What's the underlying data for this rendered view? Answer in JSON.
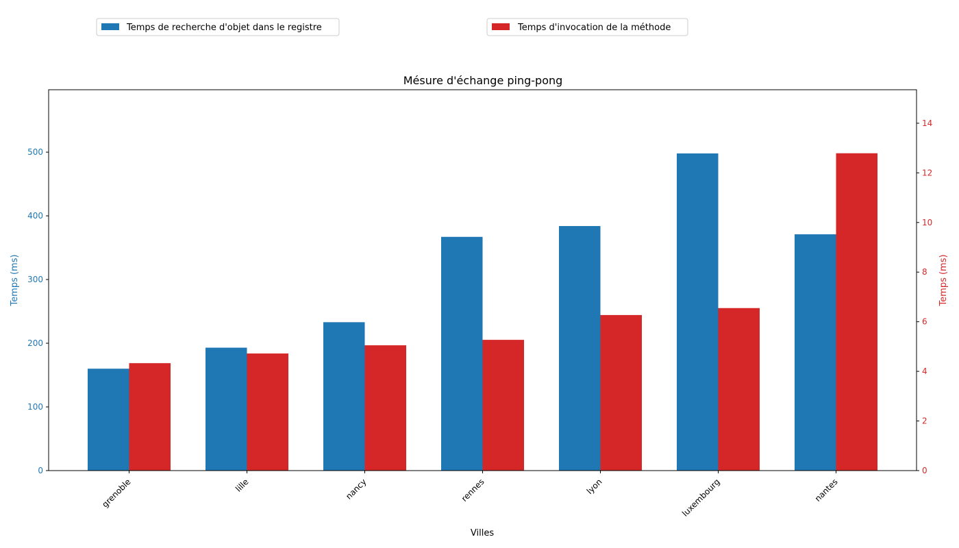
{
  "chart_data": {
    "type": "bar",
    "title": "Mésure d'échange ping-pong",
    "xlabel": "Villes",
    "categories": [
      "grenoble",
      "lille",
      "nancy",
      "rennes",
      "lyon",
      "luxembourg",
      "nantes"
    ],
    "series": [
      {
        "name": "Temps de recherche d'objet dans le registre",
        "axis": "left",
        "color": "#1f77b4",
        "values": [
          160,
          193,
          233,
          367,
          384,
          498,
          371
        ]
      },
      {
        "name": "Temps d'invocation de la méthode",
        "axis": "right",
        "color": "#d62728",
        "values": [
          4.33,
          4.72,
          5.05,
          5.27,
          6.27,
          6.55,
          12.79
        ]
      }
    ],
    "left_axis": {
      "label": "Temps (ms)",
      "color": "#1f77b4",
      "ylim": [
        0,
        598
      ],
      "ticks": [
        0,
        100,
        200,
        300,
        400,
        500
      ]
    },
    "right_axis": {
      "label": "Temps (ms)",
      "color": "#d62728",
      "ylim": [
        0,
        15.35
      ],
      "ticks": [
        0,
        2,
        4,
        6,
        8,
        10,
        12,
        14
      ]
    },
    "legend_placement": "above chart, two separate boxes (left and center)",
    "grid": false
  }
}
